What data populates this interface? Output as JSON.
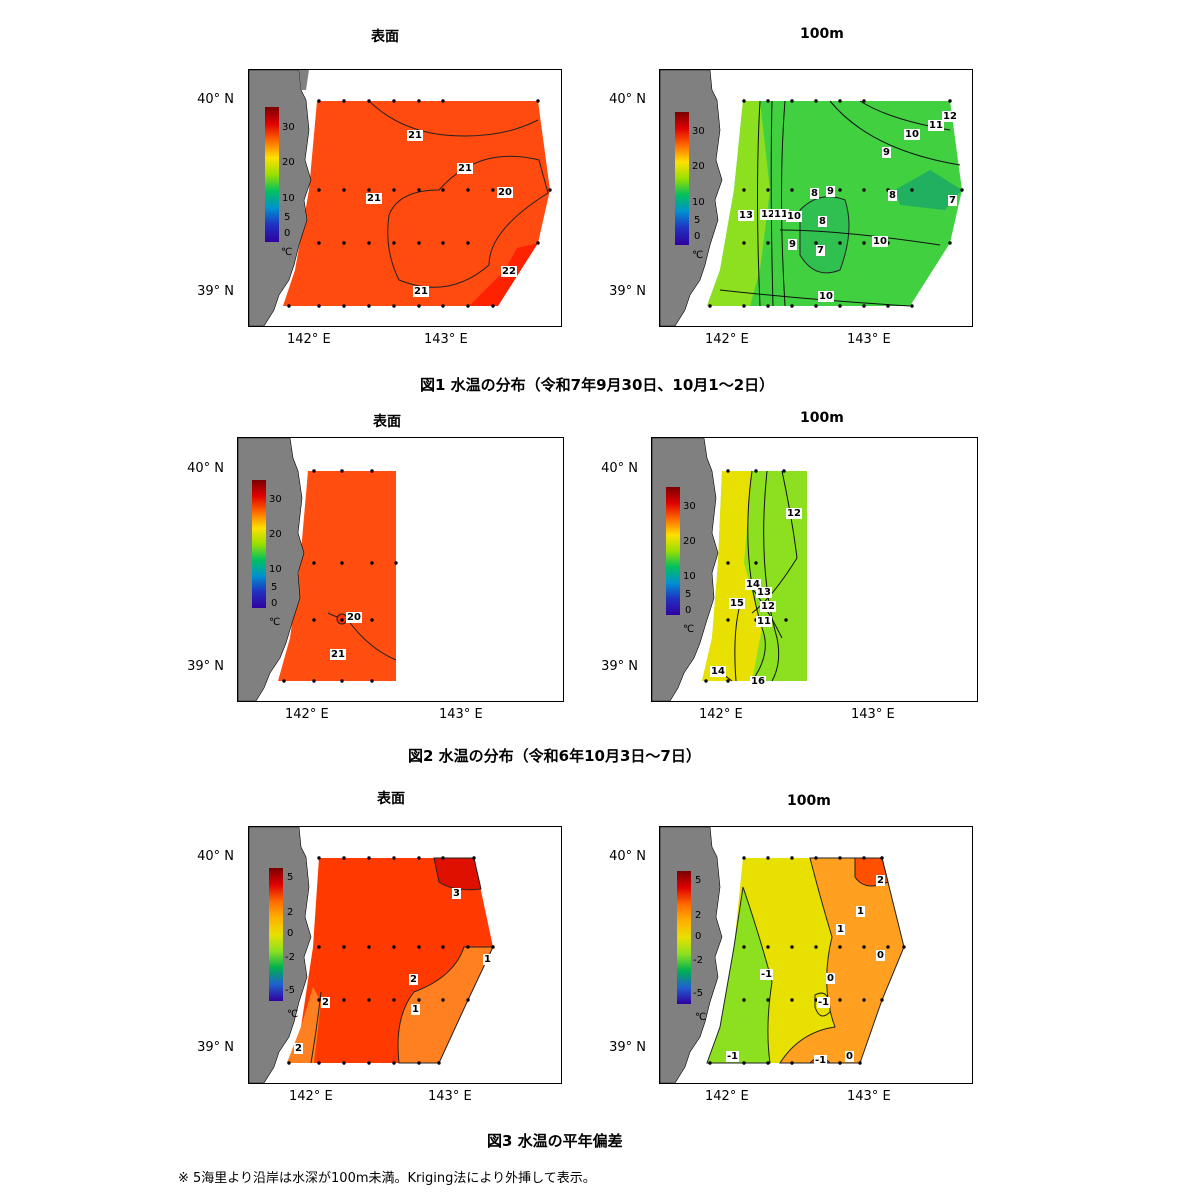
{
  "panels": {
    "f1_surface": {
      "title": "表面",
      "lat_labels": [
        "40° N",
        "39° N"
      ],
      "lon_labels": [
        "142° E",
        "143° E"
      ],
      "colorbar_ticks": [
        "30",
        "20",
        "10",
        "5",
        "0"
      ],
      "colorbar_unit": "℃",
      "contours": [
        "21",
        "21",
        "21",
        "20",
        "21",
        "22"
      ]
    },
    "f1_100m": {
      "title": "100m",
      "lat_labels": [
        "40° N",
        "39° N"
      ],
      "lon_labels": [
        "142° E",
        "143° E"
      ],
      "colorbar_ticks": [
        "30",
        "20",
        "10",
        "5",
        "0"
      ],
      "colorbar_unit": "℃",
      "contours": [
        "12",
        "11",
        "10",
        "9",
        "8",
        "9",
        "8",
        "7",
        "13",
        "12",
        "11",
        "10",
        "8",
        "9",
        "7",
        "10",
        "10"
      ]
    },
    "f2_surface": {
      "title": "表面",
      "lat_labels": [
        "40° N",
        "39° N"
      ],
      "lon_labels": [
        "142° E",
        "143° E"
      ],
      "colorbar_ticks": [
        "30",
        "20",
        "10",
        "5",
        "0"
      ],
      "colorbar_unit": "℃",
      "contours": [
        "20",
        "21"
      ]
    },
    "f2_100m": {
      "title": "100m",
      "lat_labels": [
        "40° N",
        "39° N"
      ],
      "lon_labels": [
        "142° E",
        "143° E"
      ],
      "colorbar_ticks": [
        "30",
        "20",
        "10",
        "5",
        "0"
      ],
      "colorbar_unit": "℃",
      "contours": [
        "12",
        "14",
        "13",
        "15",
        "12",
        "11",
        "14",
        "16"
      ]
    },
    "f3_surface": {
      "title": "表面",
      "lat_labels": [
        "40° N",
        "39° N"
      ],
      "lon_labels": [
        "142° E",
        "143° E"
      ],
      "colorbar_ticks": [
        "5",
        "2",
        "0",
        "-2",
        "-5"
      ],
      "colorbar_unit": "℃",
      "contours": [
        "3",
        "1",
        "2",
        "1",
        "2",
        "2"
      ]
    },
    "f3_100m": {
      "title": "100m",
      "lat_labels": [
        "40° N",
        "39° N"
      ],
      "lon_labels": [
        "142° E",
        "143° E"
      ],
      "colorbar_ticks": [
        "5",
        "2",
        "0",
        "-2",
        "-5"
      ],
      "colorbar_unit": "℃",
      "contours": [
        "2",
        "1",
        "1",
        "-1",
        "0",
        "0",
        "-1",
        "-1",
        "0",
        "-1"
      ]
    }
  },
  "captions": {
    "fig1": "図1  水温の分布（令和7年9月30日、10月1～2日）",
    "fig2": "図2  水温の分布（令和6年10月3日～7日）",
    "fig3": "図3  水温の平年偏差"
  },
  "note": "※  5海里より沿岸は水深が100m未満。Kriging法により外挿して表示。",
  "colors": {
    "land": "#808080",
    "surface_warm": "#ff4a10",
    "green": "#33cc33",
    "yellow": "#e6e600"
  }
}
